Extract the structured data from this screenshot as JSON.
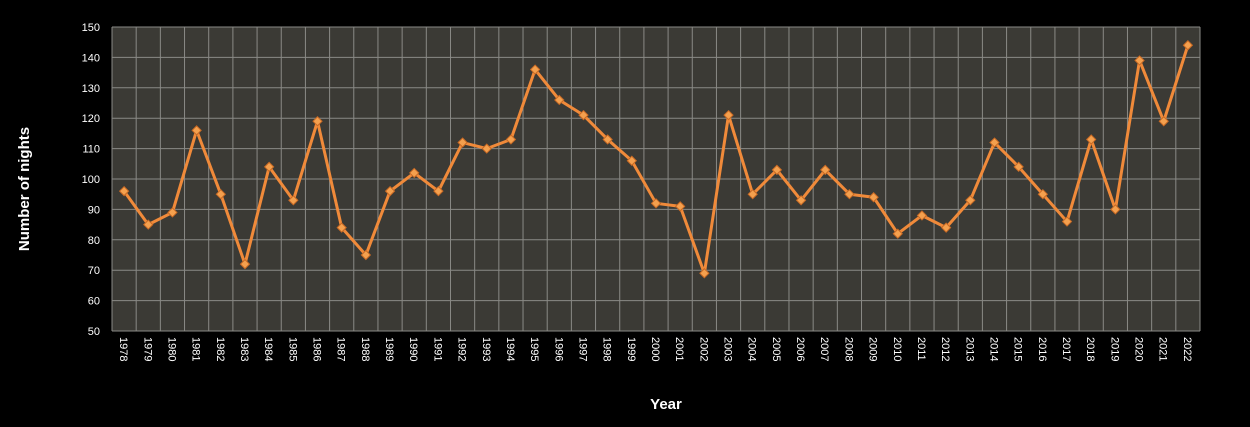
{
  "chart_data": {
    "type": "line",
    "title": "",
    "xlabel": "Year",
    "ylabel": "Number of nights",
    "ylim": [
      50,
      150
    ],
    "yticks": [
      50,
      60,
      70,
      80,
      90,
      100,
      110,
      120,
      130,
      140,
      150
    ],
    "grid": true,
    "legend": "none",
    "colors": {
      "background": "#000000",
      "plot_area": "#3b3a35",
      "grid": "#8a8a86",
      "line": "#f08a3a",
      "marker": "#f4a04e",
      "text": "#ffffff"
    },
    "categories": [
      "1978",
      "1979",
      "1980",
      "1981",
      "1982",
      "1983",
      "1984",
      "1985",
      "1986",
      "1987",
      "1988",
      "1989",
      "1990",
      "1991",
      "1992",
      "1993",
      "1994",
      "1995",
      "1996",
      "1997",
      "1998",
      "1999",
      "2000",
      "2001",
      "2002",
      "2003",
      "2004",
      "2005",
      "2006",
      "2007",
      "2008",
      "2009",
      "2010",
      "2011",
      "2012",
      "2013",
      "2014",
      "2015",
      "2016",
      "2017",
      "2018",
      "2019",
      "2020",
      "2021",
      "2022"
    ],
    "series": [
      {
        "values": [
          96,
          85,
          89,
          116,
          95,
          72,
          104,
          93,
          119,
          84,
          75,
          96,
          102,
          96,
          112,
          110,
          113,
          136,
          126,
          121,
          113,
          106,
          92,
          91,
          69,
          121,
          95,
          103,
          93,
          103,
          95,
          94,
          82,
          88,
          84,
          93,
          112,
          104,
          95,
          86,
          113,
          90,
          139,
          119,
          144
        ]
      }
    ]
  }
}
